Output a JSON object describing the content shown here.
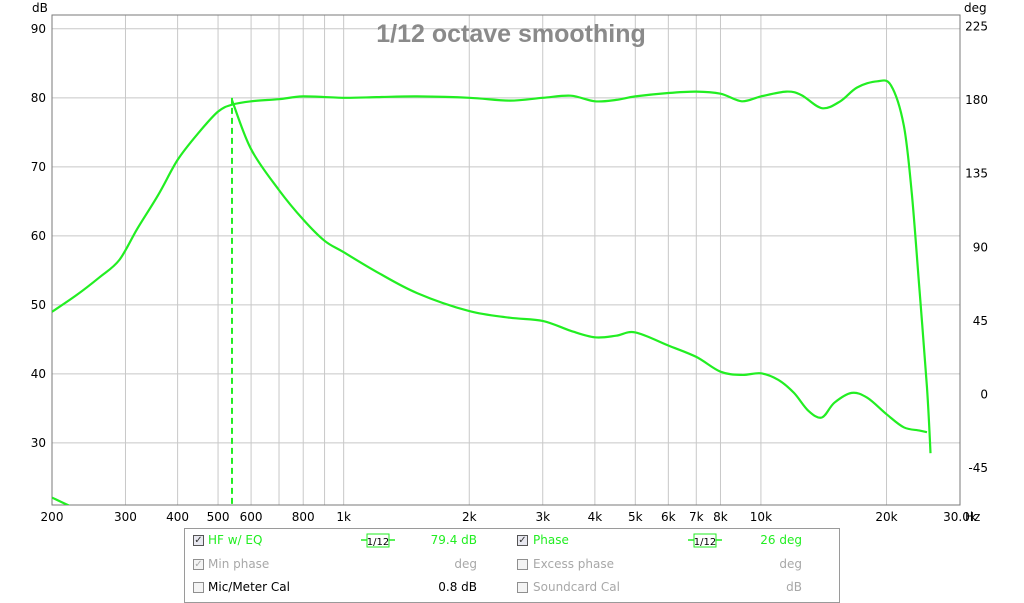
{
  "chart_data": {
    "type": "line",
    "title": "1/12 octave smoothing",
    "xlabel": "Hz",
    "ylabel_left": "dB",
    "ylabel_right": "deg",
    "x_scale": "log",
    "xlim": [
      200,
      30000
    ],
    "ylim_left": [
      21,
      92
    ],
    "ylim_right": [
      -67.5,
      232
    ],
    "grid": true,
    "x_ticks": [
      {
        "v": 200,
        "label": "200"
      },
      {
        "v": 300,
        "label": "300"
      },
      {
        "v": 400,
        "label": "400"
      },
      {
        "v": 500,
        "label": "500"
      },
      {
        "v": 600,
        "label": "600"
      },
      {
        "v": 800,
        "label": "800"
      },
      {
        "v": 1000,
        "label": "1k"
      },
      {
        "v": 2000,
        "label": "2k"
      },
      {
        "v": 3000,
        "label": "3k"
      },
      {
        "v": 4000,
        "label": "4k"
      },
      {
        "v": 5000,
        "label": "5k"
      },
      {
        "v": 6000,
        "label": "6k"
      },
      {
        "v": 7000,
        "label": "7k"
      },
      {
        "v": 8000,
        "label": "8k"
      },
      {
        "v": 10000,
        "label": "10k"
      },
      {
        "v": 20000,
        "label": "20k"
      },
      {
        "v": 30000,
        "label": "30.0k"
      }
    ],
    "x_minor_grid": [
      700,
      900
    ],
    "y_left_ticks": [
      {
        "v": 90,
        "label": "90"
      },
      {
        "v": 80,
        "label": "80"
      },
      {
        "v": 70,
        "label": "70"
      },
      {
        "v": 60,
        "label": "60"
      },
      {
        "v": 50,
        "label": "50"
      },
      {
        "v": 40,
        "label": "40"
      },
      {
        "v": 30,
        "label": "30"
      }
    ],
    "y_right_ticks": [
      {
        "v": 225,
        "label": "225"
      },
      {
        "v": 180,
        "label": "180"
      },
      {
        "v": 135,
        "label": "135"
      },
      {
        "v": 90,
        "label": "90"
      },
      {
        "v": 45,
        "label": "45"
      },
      {
        "v": 0,
        "label": "0"
      },
      {
        "v": -45,
        "label": "-45"
      }
    ],
    "color": "#22ee22",
    "series": [
      {
        "name": "HF w/ EQ",
        "axis": "left",
        "points": [
          [
            200,
            49
          ],
          [
            230,
            51.5
          ],
          [
            260,
            54
          ],
          [
            290,
            56.5
          ],
          [
            320,
            61
          ],
          [
            360,
            66
          ],
          [
            400,
            71
          ],
          [
            450,
            75
          ],
          [
            500,
            78
          ],
          [
            540,
            79
          ],
          [
            600,
            79.5
          ],
          [
            700,
            79.8
          ],
          [
            800,
            80.2
          ],
          [
            1000,
            80
          ],
          [
            1200,
            80.1
          ],
          [
            1500,
            80.2
          ],
          [
            2000,
            80
          ],
          [
            2500,
            79.6
          ],
          [
            3000,
            80
          ],
          [
            3500,
            80.3
          ],
          [
            4000,
            79.5
          ],
          [
            4500,
            79.7
          ],
          [
            5000,
            80.2
          ],
          [
            6000,
            80.7
          ],
          [
            7000,
            80.9
          ],
          [
            8000,
            80.6
          ],
          [
            9000,
            79.5
          ],
          [
            10000,
            80.2
          ],
          [
            11500,
            80.9
          ],
          [
            12500,
            80.4
          ],
          [
            14000,
            78.5
          ],
          [
            15500,
            79.5
          ],
          [
            17000,
            81.5
          ],
          [
            19000,
            82.4
          ],
          [
            20500,
            81.8
          ],
          [
            22000,
            76
          ],
          [
            23000,
            66
          ],
          [
            24000,
            52
          ],
          [
            25000,
            38
          ],
          [
            25500,
            28.5
          ]
        ]
      },
      {
        "name": "Phase",
        "axis": "right",
        "points": [
          [
            200,
            -63
          ],
          [
            230,
            -70
          ],
          [
            260,
            -74
          ],
          [
            290,
            -74
          ],
          [
            320,
            -72
          ],
          [
            340,
            -76
          ]
        ]
      },
      {
        "name": "Phase",
        "axis": "right",
        "points": [
          [
            540,
            180
          ],
          [
            600,
            150
          ],
          [
            700,
            125
          ],
          [
            800,
            107
          ],
          [
            900,
            94
          ],
          [
            1000,
            87
          ],
          [
            1200,
            75
          ],
          [
            1500,
            62
          ],
          [
            2000,
            51
          ],
          [
            2500,
            47
          ],
          [
            3000,
            45
          ],
          [
            3500,
            39
          ],
          [
            4000,
            35
          ],
          [
            4500,
            36
          ],
          [
            5000,
            38
          ],
          [
            6000,
            30
          ],
          [
            7000,
            23
          ],
          [
            8000,
            14
          ],
          [
            9000,
            12
          ],
          [
            10000,
            13
          ],
          [
            11000,
            9
          ],
          [
            12000,
            1
          ],
          [
            13000,
            -10
          ],
          [
            14000,
            -14
          ],
          [
            15000,
            -5
          ],
          [
            16500,
            1
          ],
          [
            18000,
            -2
          ],
          [
            20000,
            -12
          ],
          [
            22000,
            -20
          ],
          [
            24000,
            -22
          ],
          [
            25000,
            -23
          ]
        ]
      }
    ],
    "marker_x": 540
  },
  "legend": {
    "rows": [
      {
        "name": "HF w/ EQ",
        "checked": true,
        "value": "79.4 dB",
        "smoothing": "1/12",
        "active": true
      },
      {
        "name": "Min phase",
        "checked": true,
        "value": "deg",
        "active": false
      },
      {
        "name": "Mic/Meter Cal",
        "checked": false,
        "value": "0.8 dB",
        "active": false,
        "black": true
      }
    ],
    "rows_right": [
      {
        "name": "Phase",
        "checked": true,
        "value": "26 deg",
        "smoothing": "1/12",
        "active": true
      },
      {
        "name": "Excess phase",
        "checked": false,
        "value": "deg",
        "active": false
      },
      {
        "name": "Soundcard Cal",
        "checked": false,
        "value": "dB",
        "active": false
      }
    ]
  }
}
